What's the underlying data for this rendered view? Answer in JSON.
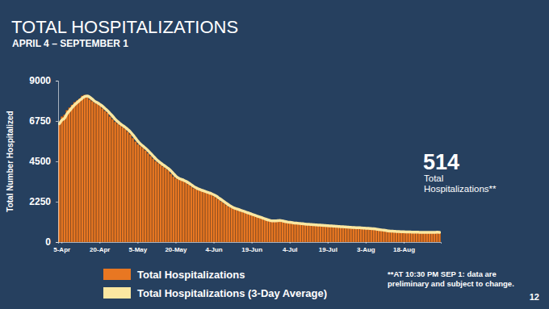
{
  "chart_data": {
    "type": "bar",
    "title": "TOTAL HOSPITALIZATIONS",
    "subtitle": "APRIL 4 – SEPTEMBER 1",
    "y_label": "Total Number Hospitalized",
    "callout_value": 514,
    "callout_label": [
      "Total",
      "Hospitalizations**"
    ],
    "footnote": [
      "**AT 10:30 PM SEP 1: data are",
      "preliminary and subject to change."
    ],
    "page_number": 12,
    "legend": "bottom-left",
    "grid": false,
    "ylim": [
      0,
      9000
    ],
    "yticks": [
      0,
      2250,
      4500,
      6750,
      9000
    ],
    "categories": [
      null,
      "5-Apr",
      null,
      null,
      null,
      null,
      null,
      null,
      null,
      null,
      null,
      null,
      null,
      null,
      null,
      null,
      "20-Apr",
      null,
      null,
      null,
      null,
      null,
      null,
      null,
      null,
      null,
      null,
      null,
      null,
      null,
      null,
      "5-May",
      null,
      null,
      null,
      null,
      null,
      null,
      null,
      null,
      null,
      null,
      null,
      null,
      null,
      null,
      "20-May",
      null,
      null,
      null,
      null,
      null,
      null,
      null,
      null,
      null,
      null,
      null,
      null,
      null,
      null,
      "4-Jun",
      null,
      null,
      null,
      null,
      null,
      null,
      null,
      null,
      null,
      null,
      null,
      null,
      null,
      null,
      "19-Jun",
      null,
      null,
      null,
      null,
      null,
      null,
      null,
      null,
      null,
      null,
      null,
      null,
      null,
      null,
      "4-Jul",
      null,
      null,
      null,
      null,
      null,
      null,
      null,
      null,
      null,
      null,
      null,
      null,
      null,
      null,
      "19-Jul",
      null,
      null,
      null,
      null,
      null,
      null,
      null,
      null,
      null,
      null,
      null,
      null,
      null,
      null,
      "3-Aug",
      null,
      null,
      null,
      null,
      null,
      null,
      null,
      null,
      null,
      null,
      null,
      null,
      null,
      null,
      "18-Aug",
      null,
      null,
      null,
      null,
      null,
      null,
      null,
      null,
      null,
      null,
      null,
      null,
      null,
      null
    ],
    "series": [
      {
        "name": "Total Hospitalizations",
        "type": "bar",
        "color": "#e87722",
        "values": [
          6600,
          7000,
          7100,
          7350,
          7500,
          7650,
          7800,
          7900,
          8000,
          8150,
          8200,
          8100,
          7950,
          7850,
          7750,
          7700,
          7600,
          7450,
          7300,
          7200,
          7000,
          6850,
          6700,
          6600,
          6500,
          6400,
          6300,
          6150,
          6000,
          5800,
          5600,
          5450,
          5350,
          5250,
          5100,
          4950,
          4800,
          4650,
          4500,
          4400,
          4300,
          4200,
          4100,
          4000,
          3800,
          3650,
          3550,
          3500,
          3450,
          3400,
          3300,
          3200,
          3100,
          3000,
          2950,
          2900,
          2850,
          2800,
          2750,
          2700,
          2650,
          2550,
          2450,
          2350,
          2250,
          2150,
          2050,
          1950,
          1900,
          1850,
          1800,
          1750,
          1700,
          1650,
          1600,
          1550,
          1500,
          1450,
          1400,
          1350,
          1300,
          1250,
          1200,
          1180,
          1150,
          1200,
          1220,
          1180,
          1150,
          1120,
          1100,
          1080,
          1060,
          1050,
          1030,
          1020,
          1000,
          990,
          980,
          970,
          960,
          950,
          940,
          930,
          920,
          910,
          900,
          890,
          880,
          870,
          860,
          850,
          840,
          830,
          820,
          810,
          800,
          800,
          790,
          780,
          770,
          760,
          760,
          740,
          720,
          700,
          680,
          660,
          640,
          620,
          610,
          600,
          590,
          580,
          575,
          570,
          560,
          560,
          555,
          550,
          550,
          545,
          540,
          540,
          535,
          530,
          530,
          540,
          550,
          560,
          514
        ]
      },
      {
        "name": "Total Hospitalizations (3-Day Average)",
        "type": "line",
        "color": "#fbe7a1",
        "values": [
          6600,
          6800,
          6900,
          7150,
          7320,
          7500,
          7650,
          7780,
          7900,
          8020,
          8120,
          8150,
          8080,
          7970,
          7850,
          7770,
          7680,
          7580,
          7450,
          7320,
          7170,
          7020,
          6850,
          6720,
          6600,
          6500,
          6400,
          6280,
          6150,
          5980,
          5800,
          5620,
          5470,
          5350,
          5230,
          5100,
          4950,
          4800,
          4650,
          4520,
          4400,
          4300,
          4200,
          4100,
          3970,
          3820,
          3670,
          3570,
          3500,
          3450,
          3380,
          3300,
          3200,
          3100,
          3020,
          2950,
          2900,
          2850,
          2800,
          2750,
          2700,
          2630,
          2550,
          2450,
          2350,
          2250,
          2150,
          2050,
          1970,
          1900,
          1850,
          1800,
          1750,
          1700,
          1650,
          1600,
          1550,
          1500,
          1450,
          1400,
          1350,
          1300,
          1250,
          1210,
          1180,
          1180,
          1190,
          1200,
          1180,
          1150,
          1120,
          1100,
          1080,
          1060,
          1050,
          1030,
          1020,
          1000,
          990,
          980,
          970,
          960,
          950,
          940,
          930,
          920,
          910,
          900,
          890,
          880,
          870,
          860,
          850,
          840,
          830,
          820,
          810,
          800,
          800,
          790,
          780,
          770,
          760,
          750,
          740,
          720,
          700,
          680,
          660,
          640,
          620,
          610,
          600,
          590,
          580,
          575,
          570,
          565,
          560,
          555,
          550,
          550,
          545,
          540,
          540,
          535,
          535,
          535,
          540,
          550,
          540
        ]
      }
    ]
  }
}
